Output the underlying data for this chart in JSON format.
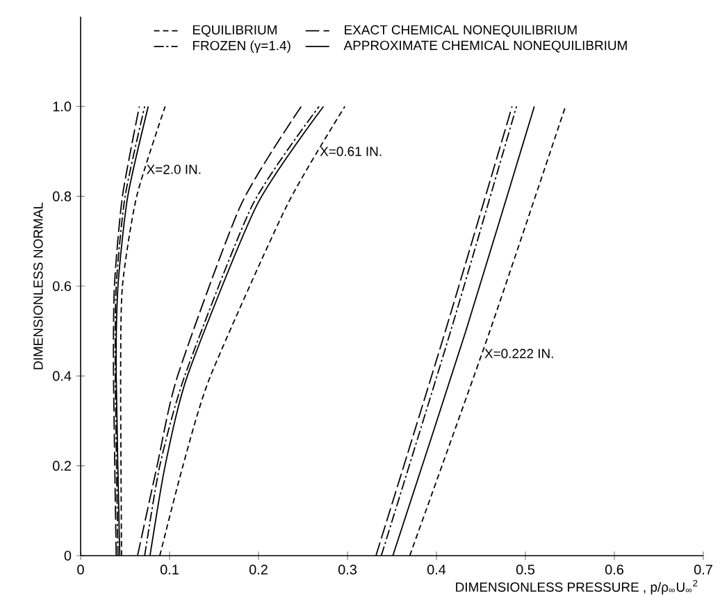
{
  "chart_data": {
    "type": "line",
    "xlabel": "DIMENSIONLESS PRESSURE , p/ρ$_{∞}$U$_{∞}$$^{2}$",
    "ylabel": "DIMENSIONLESS NORMAL",
    "xlim": [
      0,
      0.7
    ],
    "ylim": [
      0,
      1.2
    ],
    "xticks": [
      0,
      0.1,
      0.2,
      0.3,
      0.4,
      0.5,
      0.6,
      0.7
    ],
    "yticks": [
      0,
      0.2,
      0.4,
      0.6,
      0.8,
      {
        "value": 1.0,
        "label": "1.0"
      }
    ],
    "legend": "top",
    "marker": "none",
    "series": [
      {
        "name": "EQUILIBRIUM",
        "color": "#000000",
        "line_style": "dashed",
        "x": [
          0.37,
          0.46,
          0.545
        ],
        "values": [
          0,
          0.5,
          1.0
        ]
      },
      {
        "name": "EXACT CHEMICAL NONEQUILIBRIUM",
        "color": "#000000",
        "line_style": "longdash",
        "x": [
          0.332,
          0.41,
          0.485
        ],
        "values": [
          0,
          0.5,
          1.0
        ]
      },
      {
        "name": "FROZEN (γ=1.4)",
        "color": "#000000",
        "line_style": "dashdot",
        "x": [
          0.338,
          0.416,
          0.49
        ],
        "values": [
          0,
          0.5,
          1.0
        ]
      },
      {
        "name": "APPROXIMATE CHEMICAL NONEQUILIBRIUM",
        "color": "#000000",
        "line_style": "solid",
        "x": [
          0.351,
          0.433,
          0.51
        ],
        "values": [
          0,
          0.5,
          1.0
        ]
      },
      {
        "color": "#000000",
        "line_style": "dashed",
        "x": [
          0.089,
          0.115,
          0.146,
          0.232,
          0.297
        ],
        "values": [
          0,
          0.2,
          0.4,
          0.78,
          1.0
        ]
      },
      {
        "color": "#000000",
        "line_style": "longdash",
        "x": [
          0.064,
          0.086,
          0.109,
          0.18,
          0.248
        ],
        "values": [
          0,
          0.2,
          0.4,
          0.78,
          1.0
        ]
      },
      {
        "color": "#000000",
        "line_style": "dashdot",
        "x": [
          0.072,
          0.089,
          0.117,
          0.193,
          0.268
        ],
        "values": [
          0,
          0.2,
          0.4,
          0.78,
          1.0
        ]
      },
      {
        "color": "#000000",
        "line_style": "solid",
        "x": [
          0.078,
          0.095,
          0.12,
          0.198,
          0.273
        ],
        "values": [
          0,
          0.2,
          0.4,
          0.78,
          1.0
        ]
      },
      {
        "color": "#000000",
        "line_style": "dashed",
        "x": [
          0.046,
          0.045,
          0.047,
          0.063,
          0.095
        ],
        "values": [
          0,
          0.4,
          0.6,
          0.8,
          1.0
        ]
      },
      {
        "color": "#000000",
        "line_style": "longdash",
        "x": [
          0.04,
          0.037,
          0.038,
          0.047,
          0.066
        ],
        "values": [
          0,
          0.4,
          0.6,
          0.8,
          1.0
        ]
      },
      {
        "color": "#000000",
        "line_style": "dashdot",
        "x": [
          0.042,
          0.039,
          0.04,
          0.05,
          0.072
        ],
        "values": [
          0,
          0.4,
          0.6,
          0.8,
          1.0
        ]
      },
      {
        "color": "#000000",
        "line_style": "solid",
        "x": [
          0.044,
          0.04,
          0.042,
          0.053,
          0.076
        ],
        "values": [
          0,
          0.4,
          0.6,
          0.8,
          1.0
        ]
      }
    ],
    "annotations": [
      {
        "text": "X=2.0 IN.",
        "x": 0.072,
        "y": 0.86
      },
      {
        "text": "X=0.61 IN.",
        "x": 0.267,
        "y": 0.9
      },
      {
        "text": "X=0.222 IN.",
        "x": 0.452,
        "y": 0.45
      }
    ]
  }
}
